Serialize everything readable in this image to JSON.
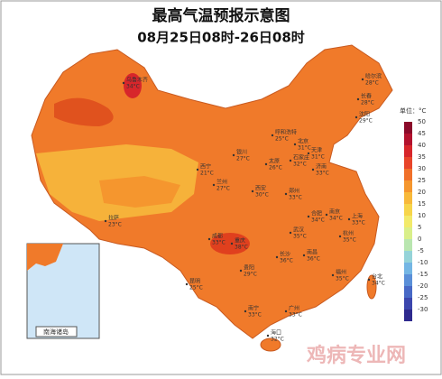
{
  "title": "最高气温预报示意图",
  "subtitle": "08月25日08时-26日08时",
  "legend": {
    "unit": "单位：°C",
    "ticks": [
      50,
      45,
      40,
      35,
      30,
      25,
      20,
      15,
      10,
      5,
      0,
      -5,
      -10,
      -15,
      -20,
      -25,
      -30
    ],
    "colors": [
      "#8b0a2a",
      "#b3122e",
      "#d7262b",
      "#e8452a",
      "#f0702a",
      "#f5962e",
      "#f8b93a",
      "#f7d54a",
      "#f2ea6a",
      "#d9ef8a",
      "#b9e6b0",
      "#95d3d8",
      "#74b6e4",
      "#5a8fd8",
      "#4869c6",
      "#3b46ad",
      "#2e2a8e"
    ]
  },
  "cities": [
    {
      "name": "乌鲁木齐",
      "temp": "34°C"
    },
    {
      "name": "哈尔滨",
      "temp": "28°C"
    },
    {
      "name": "长春",
      "temp": "28°C"
    },
    {
      "name": "沈阳",
      "temp": "29°C"
    },
    {
      "name": "呼和浩特",
      "temp": "25°C"
    },
    {
      "name": "北京",
      "temp": "31°C"
    },
    {
      "name": "天津",
      "temp": "31°C"
    },
    {
      "name": "银川",
      "temp": "27°C"
    },
    {
      "name": "太原",
      "temp": "26°C"
    },
    {
      "name": "石家庄",
      "temp": "32°C"
    },
    {
      "name": "济南",
      "temp": "33°C"
    },
    {
      "name": "西宁",
      "temp": "21°C"
    },
    {
      "name": "兰州",
      "temp": "27°C"
    },
    {
      "name": "西安",
      "temp": "30°C"
    },
    {
      "name": "郑州",
      "temp": "33°C"
    },
    {
      "name": "拉萨",
      "temp": "23°C"
    },
    {
      "name": "成都",
      "temp": "33°C"
    },
    {
      "name": "重庆",
      "temp": "38°C"
    },
    {
      "name": "合肥",
      "temp": "34°C"
    },
    {
      "name": "南京",
      "temp": "34°C"
    },
    {
      "name": "上海",
      "temp": "33°C"
    },
    {
      "name": "武汉",
      "temp": "35°C"
    },
    {
      "name": "杭州",
      "temp": "35°C"
    },
    {
      "name": "长沙",
      "temp": "36°C"
    },
    {
      "name": "南昌",
      "temp": "36°C"
    },
    {
      "name": "贵阳",
      "temp": "29°C"
    },
    {
      "name": "昆明",
      "temp": "25°C"
    },
    {
      "name": "福州",
      "temp": "35°C"
    },
    {
      "name": "台北",
      "temp": "34°C"
    },
    {
      "name": "南宁",
      "temp": "33°C"
    },
    {
      "name": "广州",
      "temp": "33°C"
    },
    {
      "name": "海口",
      "temp": "32°C"
    }
  ],
  "inset": {
    "label": "南海诸岛"
  },
  "watermark": "鸡病专业网"
}
